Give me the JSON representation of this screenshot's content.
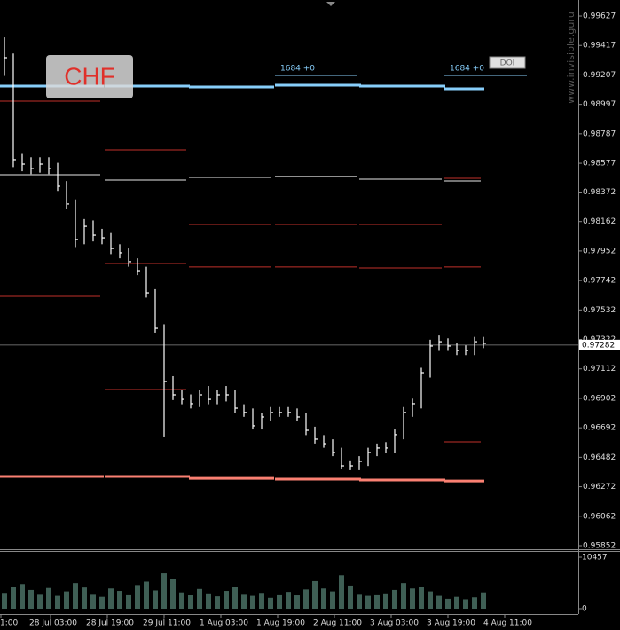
{
  "chart_data": {
    "type": "ohlc",
    "symbol": "CHF",
    "watermark": "www.invisible.guru",
    "badge": "DOI",
    "annotations": [
      "1684 +0",
      "1684 +0"
    ],
    "time_labels": [
      "1:00",
      "28 Jul 03:00",
      "28 Jul 19:00",
      "29 Jul 11:00",
      "1 Aug 03:00",
      "1 Aug 19:00",
      "2 Aug 11:00",
      "3 Aug 03:00",
      "3 Aug 19:00",
      "4 Aug 11:00"
    ],
    "color": "#ffffff",
    "high": [
      0.99475,
      0.9936,
      0.9865,
      0.9862,
      0.9862,
      0.9862,
      0.9858,
      0.9845,
      0.9832,
      0.9818,
      0.9817,
      0.9811,
      0.9808,
      0.98,
      0.9797,
      0.979,
      0.9784,
      0.9768,
      0.9743,
      0.9706,
      0.9696,
      0.9693,
      0.9696,
      0.9699,
      0.9696,
      0.9699,
      0.9696,
      0.9686,
      0.9683,
      0.968,
      0.9684,
      0.9684,
      0.9684,
      0.9683,
      0.968,
      0.967,
      0.9664,
      0.9661,
      0.9655,
      0.9646,
      0.9649,
      0.9655,
      0.9658,
      0.9659,
      0.9668,
      0.9684,
      0.969,
      0.9712,
      0.9732,
      0.9735,
      0.9733,
      0.973,
      0.9728,
      0.9734,
      0.9734
    ],
    "low": [
      0.992,
      0.9855,
      0.9852,
      0.985,
      0.9851,
      0.985,
      0.9838,
      0.9825,
      0.9798,
      0.98,
      0.9802,
      0.98,
      0.9793,
      0.979,
      0.9784,
      0.9778,
      0.9762,
      0.9737,
      0.9663,
      0.9689,
      0.9686,
      0.9683,
      0.9684,
      0.9686,
      0.9686,
      0.9688,
      0.968,
      0.9677,
      0.9668,
      0.9668,
      0.9674,
      0.9677,
      0.9677,
      0.9674,
      0.9664,
      0.9658,
      0.9655,
      0.9649,
      0.964,
      0.9639,
      0.9639,
      0.9642,
      0.9649,
      0.9651,
      0.9651,
      0.9661,
      0.9677,
      0.9683,
      0.9705,
      0.9724,
      0.9724,
      0.9721,
      0.9721,
      0.9721,
      0.9726
    ],
    "close": [
      0.9933,
      0.98603,
      0.98571,
      0.98539,
      0.98571,
      0.98539,
      0.98413,
      0.98287,
      0.98034,
      0.98128,
      0.98065,
      0.98046,
      0.9797,
      0.97939,
      0.97876,
      0.97812,
      0.97654,
      0.97401,
      0.97022,
      0.96927,
      0.96895,
      0.96864,
      0.96927,
      0.96895,
      0.96927,
      0.96927,
      0.96832,
      0.96801,
      0.96706,
      0.96769,
      0.96801,
      0.96801,
      0.96801,
      0.96769,
      0.96674,
      0.96611,
      0.96579,
      0.96516,
      0.96421,
      0.96421,
      0.96453,
      0.96516,
      0.96548,
      0.96548,
      0.96643,
      0.96801,
      0.96864,
      0.97085,
      0.97275,
      0.97306,
      0.97275,
      0.97243,
      0.97243,
      0.97306,
      0.97294
    ],
    "volume": {
      "color": "#3f5f55",
      "values": [
        3200,
        4500,
        5000,
        3800,
        3000,
        4200,
        2600,
        3500,
        5200,
        4300,
        3000,
        2400,
        4100,
        3600,
        2900,
        4800,
        5500,
        3700,
        7200,
        6100,
        3300,
        2800,
        4000,
        3100,
        2500,
        3600,
        4400,
        3000,
        2600,
        3200,
        2200,
        2900,
        3400,
        2700,
        3900,
        5600,
        4100,
        3500,
        6800,
        4700,
        3000,
        2600,
        2900,
        3100,
        3800,
        5200,
        4100,
        4400,
        3500,
        2600,
        2000,
        2400,
        1900,
        2300,
        3300
      ],
      "ylim": [
        0,
        10457
      ],
      "yticks": [
        0,
        10457
      ]
    },
    "ylim": [
      0.95833,
      0.99741
    ],
    "yticks": [
      0.99627,
      0.99417,
      0.99207,
      0.98997,
      0.98787,
      0.98577,
      0.98372,
      0.98162,
      0.97952,
      0.97742,
      0.97532,
      0.97322,
      0.97112,
      0.96902,
      0.96692,
      0.96482,
      0.96272,
      0.96062,
      0.95852
    ],
    "current_price": 0.97282,
    "upper_band": {
      "color": "#87cefa",
      "values": [
        0.99128,
        0.99128,
        0.99121,
        0.99134,
        0.99128,
        0.99109
      ]
    },
    "lower_band": {
      "color": "#fa8072",
      "values": [
        0.96345,
        0.96345,
        0.96332,
        0.96326,
        0.9632,
        0.96313
      ]
    },
    "pivots": [
      [
        {
          "value": 0.9902,
          "color": "#c0302a"
        },
        {
          "value": 0.98495,
          "color": "#e8e8e8"
        },
        {
          "value": 0.97629,
          "color": "#c0302a"
        }
      ],
      [
        {
          "value": 0.98672,
          "color": "#c0302a"
        },
        {
          "value": 0.98457,
          "color": "#e8e8e8"
        },
        {
          "value": 0.97863,
          "color": "#c0302a"
        },
        {
          "value": 0.96965,
          "color": "#c0302a"
        }
      ],
      [
        {
          "value": 0.98476,
          "color": "#e8e8e8"
        },
        {
          "value": 0.98141,
          "color": "#c0302a"
        },
        {
          "value": 0.97838,
          "color": "#c0302a"
        }
      ],
      [
        {
          "value": 0.98483,
          "color": "#e8e8e8"
        },
        {
          "value": 0.98141,
          "color": "#c0302a"
        },
        {
          "value": 0.97838,
          "color": "#c0302a"
        }
      ],
      [
        {
          "value": 0.98464,
          "color": "#e8e8e8"
        },
        {
          "value": 0.98141,
          "color": "#c0302a"
        },
        {
          "value": 0.97831,
          "color": "#c0302a"
        }
      ],
      [
        {
          "value": 0.9847,
          "color": "#c0302a"
        },
        {
          "value": 0.98451,
          "color": "#e8e8e8"
        },
        {
          "value": 0.97838,
          "color": "#c0302a"
        },
        {
          "value": 0.96592,
          "color": "#c0302a"
        }
      ]
    ]
  }
}
